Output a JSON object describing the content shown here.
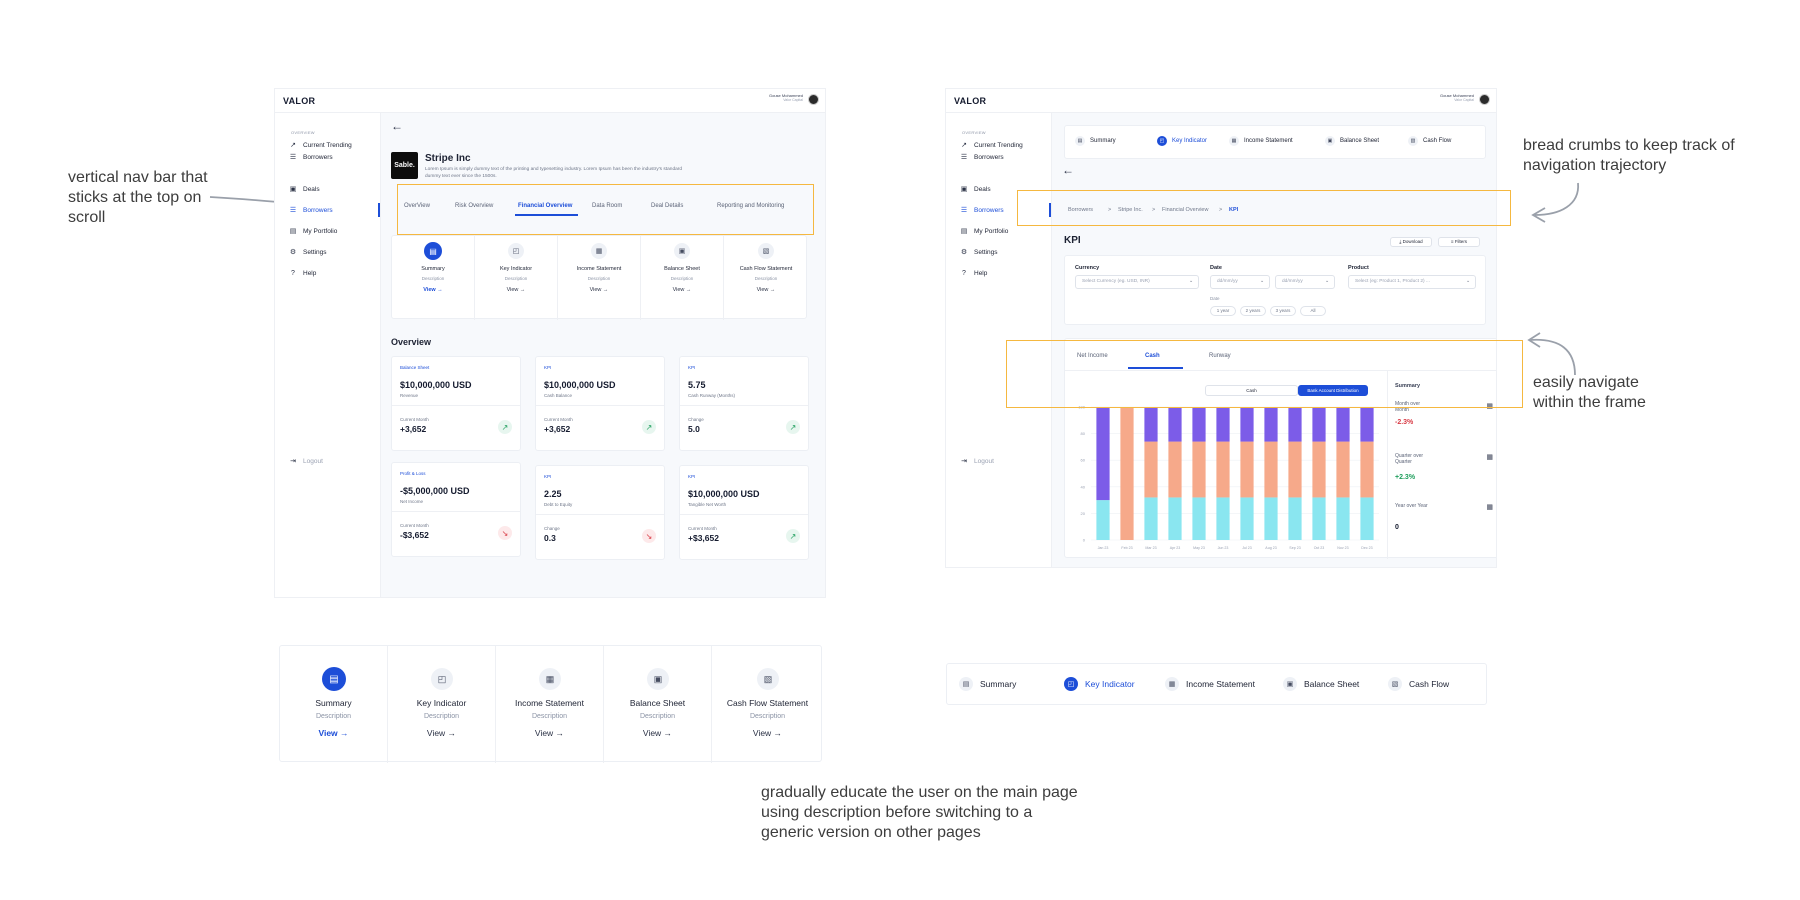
{
  "annotations": {
    "nav": "vertical nav bar that sticks at the top on scroll",
    "breadcrumbs": "bread crumbs to keep track of navigation trajectory",
    "frame": "easily navigate within the frame",
    "educate": "gradually educate the user on the main page using description before switching to a generic version on other pages"
  },
  "app": {
    "logo": "VALOR",
    "user_name": "Gouse Mohammed",
    "user_org": "Valor Capital"
  },
  "sidebar": {
    "section": "OVERVIEW",
    "items": [
      {
        "label": "Current Trending",
        "icon": "trending-icon"
      },
      {
        "label": "Borrowers",
        "icon": "list-icon"
      },
      {
        "label": "Deals",
        "icon": "deals-icon"
      },
      {
        "label": "Borrowers",
        "icon": "list-icon"
      },
      {
        "label": "My Portfolio",
        "icon": "portfolio-icon"
      },
      {
        "label": "Settings",
        "icon": "gear-icon"
      },
      {
        "label": "Help",
        "icon": "help-icon"
      }
    ],
    "logout": "Logout"
  },
  "left": {
    "company": {
      "logo_text": "Sable.",
      "name": "Stripe Inc",
      "description": "Lorem Ipsum is simply dummy text of the printing and typesetting industry. Lorem Ipsum has been the industry's standard dummy text ever since the 1500s."
    },
    "tabs": [
      "OverView",
      "Risk Overview",
      "Financial Overview",
      "Data Room",
      "Deal Details",
      "Reporting and Monitoring"
    ],
    "active_tab": 2,
    "tiles": [
      {
        "title": "Summary",
        "desc": "Description",
        "view": "View →"
      },
      {
        "title": "Key Indicator",
        "desc": "Description",
        "view": "View →"
      },
      {
        "title": "Income Statement",
        "desc": "Description",
        "view": "View →"
      },
      {
        "title": "Balance Sheet",
        "desc": "Description",
        "view": "View →"
      },
      {
        "title": "Cash Flow Statement",
        "desc": "Description",
        "view": "View →"
      }
    ],
    "overview_title": "Overview",
    "overview_cards": [
      {
        "tag": "Balance Sheet",
        "value": "$10,000,000 USD",
        "sub": "Revenue",
        "clab": "Current Month",
        "cval": "+3,652",
        "trend": "up"
      },
      {
        "tag": "KPI",
        "value": "$10,000,000 USD",
        "sub": "Cash Balance",
        "clab": "Current Month",
        "cval": "+3,652",
        "trend": "up"
      },
      {
        "tag": "KPI",
        "value": "5.75",
        "sub": "Cash Runway (Months)",
        "clab": "Change",
        "cval": "5.0",
        "trend": "up"
      },
      {
        "tag": "Profit & Loss",
        "value": "-$5,000,000 USD",
        "sub": "Net Income",
        "clab": "Current Month",
        "cval": "-$3,652",
        "trend": "down"
      },
      {
        "tag": "KPI",
        "value": "2.25",
        "sub": "Debt to Equity",
        "clab": "Change",
        "cval": "0.3",
        "trend": "down"
      },
      {
        "tag": "KPI",
        "value": "$10,000,000 USD",
        "sub": "Tangible Net Worth",
        "clab": "Current Month",
        "cval": "+$3,652",
        "trend": "up"
      }
    ]
  },
  "right": {
    "subtabs": [
      "Summary",
      "Key Indicator",
      "Income Statement",
      "Balance Sheet",
      "Cash Flow"
    ],
    "active_subtab": 1,
    "breadcrumbs": [
      "Borrowers",
      "Stripe Inc.",
      "Financial Overview",
      "KPI"
    ],
    "breadcrumb_sep": ">",
    "page_title": "KPI",
    "download": "Download",
    "filters": "Filters",
    "currency_label": "Currency",
    "currency_placeholder": "Select Currency (eg. USD, INR)",
    "date_label": "Date",
    "date_placeholder": "dd/mm/yy",
    "product_label": "Product",
    "product_placeholder": "Select (eg: Product 1, Product 2) ...",
    "date_sub_label": "Date",
    "date_pills": [
      "1 year",
      "2 years",
      "3 years",
      "All"
    ],
    "chart_tabs": [
      "Net Income",
      "Cash",
      "Runway"
    ],
    "active_chart_tab": 1,
    "toggle": [
      "Cash",
      "Bank Account Distribution"
    ],
    "summary_title": "Summary",
    "summary": [
      {
        "label": "Month over Month",
        "value": "-2.3%",
        "color": "#d83b45"
      },
      {
        "label": "Quarter over Quarter",
        "value": "+2.3%",
        "color": "#1e9e5c"
      },
      {
        "label": "Year over Year",
        "value": "0",
        "color": "#141a2e"
      }
    ]
  },
  "chart_data": {
    "type": "bar",
    "stacked": true,
    "categories": [
      "Jan 23",
      "Feb 23",
      "Mar 23",
      "Apr 23",
      "May 23",
      "Jun 23",
      "Jul 23",
      "Aug 23",
      "Sep 23",
      "Oct 23",
      "Nov 23",
      "Dec 23"
    ],
    "series": [
      {
        "values": [
          30,
          0,
          32,
          32,
          32,
          32,
          32,
          32,
          32,
          32,
          32,
          32
        ],
        "color": "#8ae6f0"
      },
      {
        "values": [
          0,
          100,
          42,
          42,
          42,
          42,
          42,
          42,
          42,
          42,
          42,
          42
        ],
        "color": "#f6a98a"
      },
      {
        "values": [
          70,
          0,
          26,
          26,
          26,
          26,
          26,
          26,
          26,
          26,
          26,
          26
        ],
        "color": "#7c5ce8"
      }
    ],
    "ylim": [
      0,
      100
    ],
    "yticks": [
      0,
      20,
      40,
      60,
      80,
      100
    ],
    "grid": true
  },
  "bottom_left": {
    "tiles": [
      {
        "title": "Summary",
        "desc": "Description",
        "view": "View →"
      },
      {
        "title": "Key Indicator",
        "desc": "Description",
        "view": "View →"
      },
      {
        "title": "Income Statement",
        "desc": "Description",
        "view": "View →"
      },
      {
        "title": "Balance Sheet",
        "desc": "Description",
        "view": "View →"
      },
      {
        "title": "Cash Flow Statement",
        "desc": "Description",
        "view": "View →"
      }
    ]
  },
  "bottom_right": {
    "items": [
      "Summary",
      "Key Indicator",
      "Income Statement",
      "Balance Sheet",
      "Cash Flow"
    ],
    "active": 1
  }
}
